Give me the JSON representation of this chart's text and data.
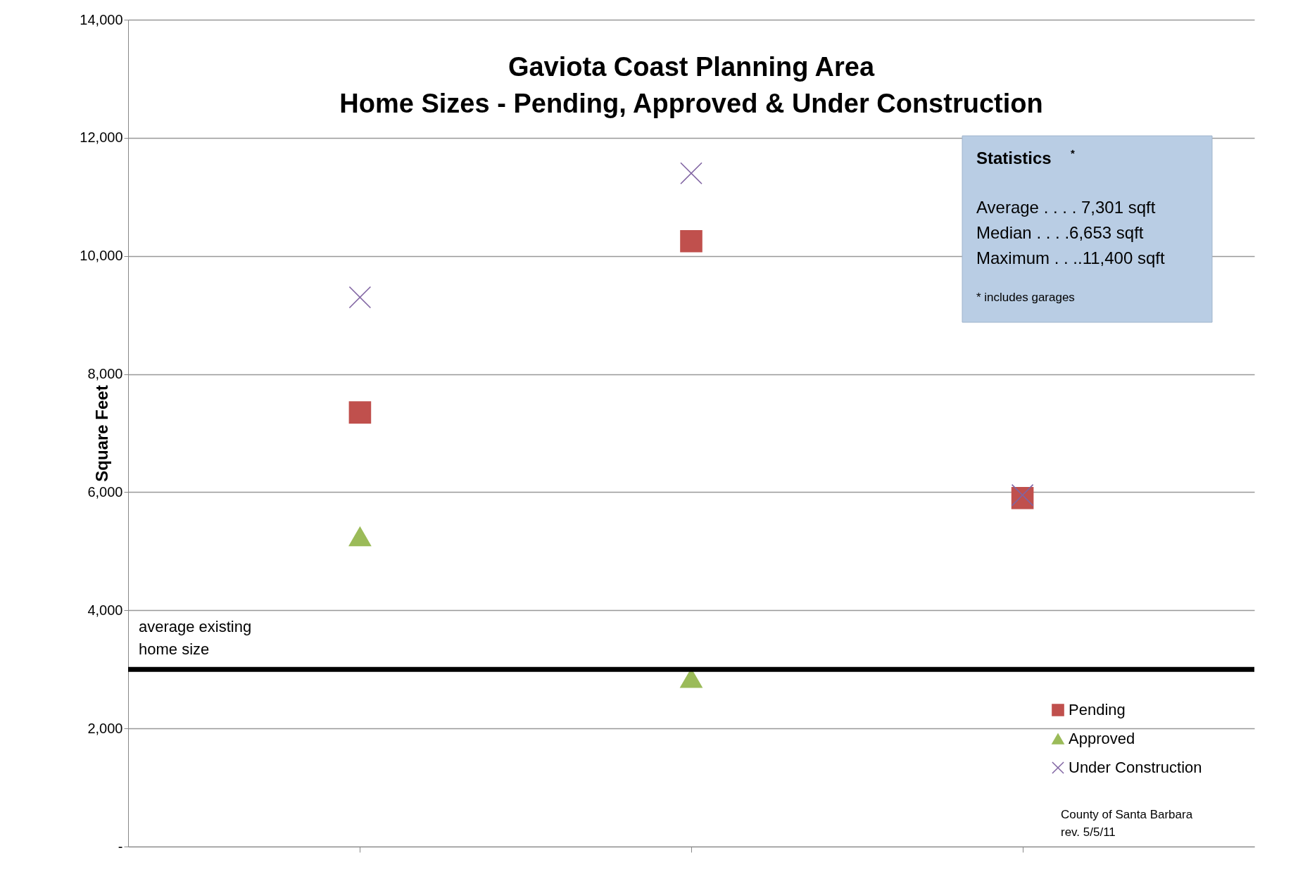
{
  "chart_data": {
    "type": "scatter",
    "title": "Gaviota Coast Planning Area",
    "subtitle": "Home Sizes - Pending, Approved & Under Construction",
    "ylabel": "Square Feet",
    "categories": [
      null,
      null,
      null
    ],
    "series": [
      {
        "name": "Pending",
        "color": "#c0504d",
        "marker": "square",
        "values": [
          7350,
          10250,
          5900
        ]
      },
      {
        "name": "Approved",
        "color": "#9bbb59",
        "marker": "triangle",
        "values": [
          5250,
          2850,
          null
        ]
      },
      {
        "name": "Under Construction",
        "color": "#8064a2",
        "marker": "cross",
        "values": [
          9300,
          11400,
          5950
        ]
      }
    ],
    "ylim": [
      0,
      14000
    ],
    "yticks": [
      {
        "value": 0,
        "label": "-"
      },
      {
        "value": 2000,
        "label": "2,000"
      },
      {
        "value": 4000,
        "label": "4,000"
      },
      {
        "value": 6000,
        "label": "6,000"
      },
      {
        "value": 8000,
        "label": "8,000"
      },
      {
        "value": 10000,
        "label": "10,000"
      },
      {
        "value": 12000,
        "label": "12,000"
      },
      {
        "value": 14000,
        "label": "14,000"
      }
    ],
    "grid": "y",
    "legend": "bottom right",
    "tick_labels": "y",
    "ref_lines": [
      {
        "axis": "y",
        "value": 3000,
        "label": "average existing home size",
        "color": "#000000"
      }
    ],
    "annotations": [
      "Statistics$^{*}$",
      "Average . . . . 7,301 sqft",
      "Median . . . .6,653  sqft",
      "Maximum . . ..11,400 sqft",
      "* includes garages",
      "County of  Santa Barbara",
      "rev. 5/5/11"
    ]
  }
}
